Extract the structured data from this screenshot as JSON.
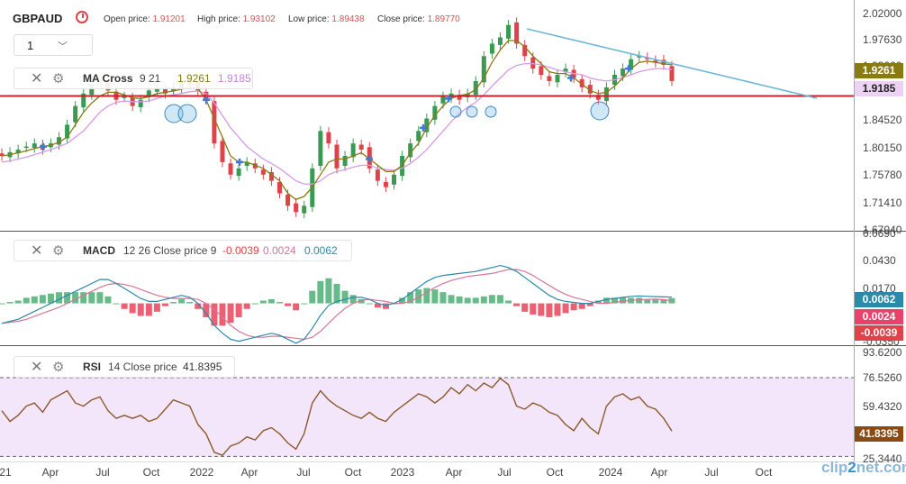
{
  "header": {
    "symbol": "GBPAUD",
    "open_label": "Open price:",
    "open_value": "1.91201",
    "high_label": "High price:",
    "high_value": "1.93102",
    "low_label": "Low price:",
    "low_value": "1.89438",
    "close_label": "Close price:",
    "close_value": "1.89770",
    "timeframe": "1",
    "timeframe_caret": "﹀"
  },
  "indicators": {
    "ma": {
      "name": "MA Cross",
      "params": "9 21",
      "fast_value": "1.9261",
      "slow_value": "1.9185"
    },
    "macd": {
      "name": "MACD",
      "params": "12 26 Close price 9",
      "v1": "-0.0039",
      "v2": "0.0024",
      "v3": "0.0062"
    },
    "rsi": {
      "name": "RSI",
      "params": "14 Close price",
      "value": "41.8395"
    }
  },
  "price_tags": {
    "ma_fast": "1.9261",
    "ma_slow": "1.9185",
    "macd_line": "0.0062",
    "macd_signal": "0.0024",
    "macd_hist": "-0.0039",
    "rsi": "41.8395"
  },
  "colors": {
    "up": "#3a9a52",
    "down": "#e0424a",
    "ma_fast": "#8a7a14",
    "ma_slow": "#d79be6",
    "macd_line": "#2a8aa8",
    "signal_line": "#d9749a",
    "trendline": "#6cb6d6",
    "support": "#cc1f2a",
    "rsi_band": "#f3e6fb",
    "rsi_line": "#8b5a2b"
  },
  "watermark": {
    "a": "clip",
    "b": "2",
    "c": "net",
    "d": ".com"
  },
  "chart_data": {
    "type": "line",
    "x_labels": [
      "21",
      "Apr",
      "Jul",
      "Oct",
      "2022",
      "Apr",
      "Jul",
      "Oct",
      "2023",
      "Apr",
      "Jul",
      "Oct",
      "2024",
      "Apr",
      "Jul",
      "Oct"
    ],
    "price_axis": [
      "2.02000",
      "1.97630",
      "1.93260",
      "1.88890",
      "1.84520",
      "1.80150",
      "1.75780",
      "1.71410",
      "1.67040"
    ],
    "macd_axis": [
      "0.0690",
      "0.0430",
      "0.0170",
      "-0.0090",
      "-0.0350"
    ],
    "rsi_axis": [
      "93.6200",
      "76.5260",
      "59.4320",
      "42.3380",
      "25.3440"
    ],
    "support_level": 1.876,
    "rsi_band": [
      25.3,
      76.5
    ],
    "series": [
      {
        "name": "GBPAUD",
        "values": [
          1.78,
          1.786,
          1.79,
          1.795,
          1.8,
          1.79,
          1.8,
          1.81,
          1.83,
          1.86,
          1.88,
          1.895,
          1.9,
          1.885,
          1.87,
          1.875,
          1.86,
          1.87,
          1.885,
          1.89,
          1.88,
          1.89,
          1.9,
          1.895,
          1.885,
          1.87,
          1.8,
          1.77,
          1.75,
          1.76,
          1.77,
          1.76,
          1.75,
          1.74,
          1.72,
          1.7,
          1.69,
          1.7,
          1.76,
          1.82,
          1.8,
          1.76,
          1.78,
          1.8,
          1.79,
          1.76,
          1.74,
          1.73,
          1.75,
          1.78,
          1.8,
          1.82,
          1.84,
          1.86,
          1.875,
          1.88,
          1.87,
          1.88,
          1.9,
          1.94,
          1.96,
          1.97,
          1.99,
          1.96,
          1.94,
          1.92,
          1.91,
          1.9,
          1.91,
          1.92,
          1.905,
          1.89,
          1.88,
          1.87,
          1.89,
          1.91,
          1.92,
          1.935,
          1.94,
          1.935,
          1.93,
          1.926,
          1.9
        ]
      },
      {
        "name": "MA 9",
        "values": [
          1.78,
          1.782,
          1.785,
          1.788,
          1.792,
          1.795,
          1.797,
          1.802,
          1.81,
          1.83,
          1.85,
          1.865,
          1.876,
          1.882,
          1.882,
          1.878,
          1.873,
          1.872,
          1.875,
          1.88,
          1.882,
          1.884,
          1.887,
          1.89,
          1.888,
          1.87,
          1.84,
          1.81,
          1.78,
          1.77,
          1.77,
          1.765,
          1.76,
          1.75,
          1.74,
          1.72,
          1.71,
          1.715,
          1.73,
          1.75,
          1.77,
          1.775,
          1.775,
          1.78,
          1.785,
          1.775,
          1.765,
          1.755,
          1.755,
          1.765,
          1.785,
          1.8,
          1.825,
          1.845,
          1.86,
          1.872,
          1.877,
          1.879,
          1.886,
          1.905,
          1.93,
          1.95,
          1.965,
          1.965,
          1.955,
          1.94,
          1.928,
          1.915,
          1.912,
          1.912,
          1.905,
          1.895,
          1.885,
          1.88,
          1.882,
          1.892,
          1.905,
          1.92,
          1.93,
          1.932,
          1.93,
          1.928,
          1.926
        ]
      },
      {
        "name": "MA 21",
        "values": [
          1.77,
          1.772,
          1.775,
          1.778,
          1.782,
          1.786,
          1.79,
          1.795,
          1.8,
          1.81,
          1.82,
          1.835,
          1.85,
          1.86,
          1.866,
          1.868,
          1.867,
          1.867,
          1.868,
          1.872,
          1.876,
          1.878,
          1.88,
          1.883,
          1.884,
          1.88,
          1.865,
          1.845,
          1.825,
          1.81,
          1.795,
          1.785,
          1.775,
          1.768,
          1.76,
          1.75,
          1.74,
          1.735,
          1.735,
          1.74,
          1.75,
          1.755,
          1.758,
          1.762,
          1.765,
          1.765,
          1.76,
          1.758,
          1.757,
          1.76,
          1.768,
          1.778,
          1.79,
          1.805,
          1.82,
          1.835,
          1.848,
          1.858,
          1.866,
          1.878,
          1.892,
          1.905,
          1.918,
          1.925,
          1.928,
          1.928,
          1.926,
          1.922,
          1.918,
          1.915,
          1.912,
          1.91,
          1.905,
          1.902,
          1.9,
          1.902,
          1.906,
          1.91,
          1.915,
          1.918,
          1.92,
          1.92,
          1.9185
        ]
      },
      {
        "name": "MACD",
        "values": [
          -0.02,
          -0.018,
          -0.016,
          -0.012,
          -0.008,
          -0.004,
          0.0,
          0.004,
          0.008,
          0.012,
          0.016,
          0.02,
          0.024,
          0.024,
          0.02,
          0.015,
          0.01,
          0.005,
          0.002,
          0.002,
          0.004,
          0.006,
          0.008,
          0.006,
          0.0,
          -0.01,
          -0.022,
          -0.03,
          -0.036,
          -0.038,
          -0.036,
          -0.034,
          -0.032,
          -0.03,
          -0.032,
          -0.036,
          -0.04,
          -0.036,
          -0.025,
          -0.012,
          -0.002,
          0.002,
          0.004,
          0.006,
          0.006,
          0.004,
          0.0,
          -0.002,
          0.0,
          0.004,
          0.01,
          0.016,
          0.022,
          0.026,
          0.028,
          0.029,
          0.03,
          0.031,
          0.032,
          0.034,
          0.036,
          0.038,
          0.036,
          0.032,
          0.026,
          0.02,
          0.014,
          0.008,
          0.004,
          0.002,
          0.001,
          0.0,
          0.0,
          0.002,
          0.004,
          0.005,
          0.006,
          0.007,
          0.0075,
          0.007,
          0.0068,
          0.0065,
          0.0062
        ]
      },
      {
        "name": "Signal",
        "values": [
          -0.02,
          -0.019,
          -0.018,
          -0.016,
          -0.013,
          -0.01,
          -0.007,
          -0.004,
          0.0,
          0.004,
          0.008,
          0.012,
          0.016,
          0.019,
          0.02,
          0.019,
          0.017,
          0.014,
          0.011,
          0.008,
          0.006,
          0.005,
          0.005,
          0.005,
          0.004,
          0.0,
          -0.006,
          -0.014,
          -0.022,
          -0.028,
          -0.032,
          -0.034,
          -0.034,
          -0.033,
          -0.033,
          -0.034,
          -0.035,
          -0.036,
          -0.034,
          -0.028,
          -0.02,
          -0.012,
          -0.005,
          0.0,
          0.003,
          0.004,
          0.003,
          0.002,
          0.0,
          0.0,
          0.002,
          0.006,
          0.011,
          0.016,
          0.02,
          0.023,
          0.025,
          0.027,
          0.028,
          0.029,
          0.03,
          0.032,
          0.034,
          0.034,
          0.032,
          0.028,
          0.023,
          0.018,
          0.013,
          0.009,
          0.006,
          0.004,
          0.002,
          0.0,
          0.0,
          0.001,
          0.002,
          0.003,
          0.0035,
          0.004,
          0.0042,
          0.0038,
          0.0024
        ]
      },
      {
        "name": "RSI",
        "values": [
          55,
          48,
          52,
          58,
          60,
          54,
          62,
          65,
          68,
          60,
          58,
          62,
          64,
          55,
          50,
          52,
          50,
          52,
          48,
          50,
          56,
          62,
          60,
          58,
          46,
          40,
          28,
          26,
          32,
          34,
          38,
          36,
          42,
          44,
          40,
          34,
          30,
          40,
          60,
          68,
          62,
          58,
          55,
          52,
          50,
          54,
          50,
          48,
          54,
          58,
          62,
          66,
          64,
          60,
          64,
          70,
          66,
          72,
          68,
          73,
          70,
          76,
          72,
          58,
          56,
          60,
          58,
          54,
          52,
          46,
          42,
          50,
          44,
          40,
          58,
          64,
          66,
          62,
          64,
          58,
          56,
          50,
          41.8
        ]
      }
    ]
  }
}
